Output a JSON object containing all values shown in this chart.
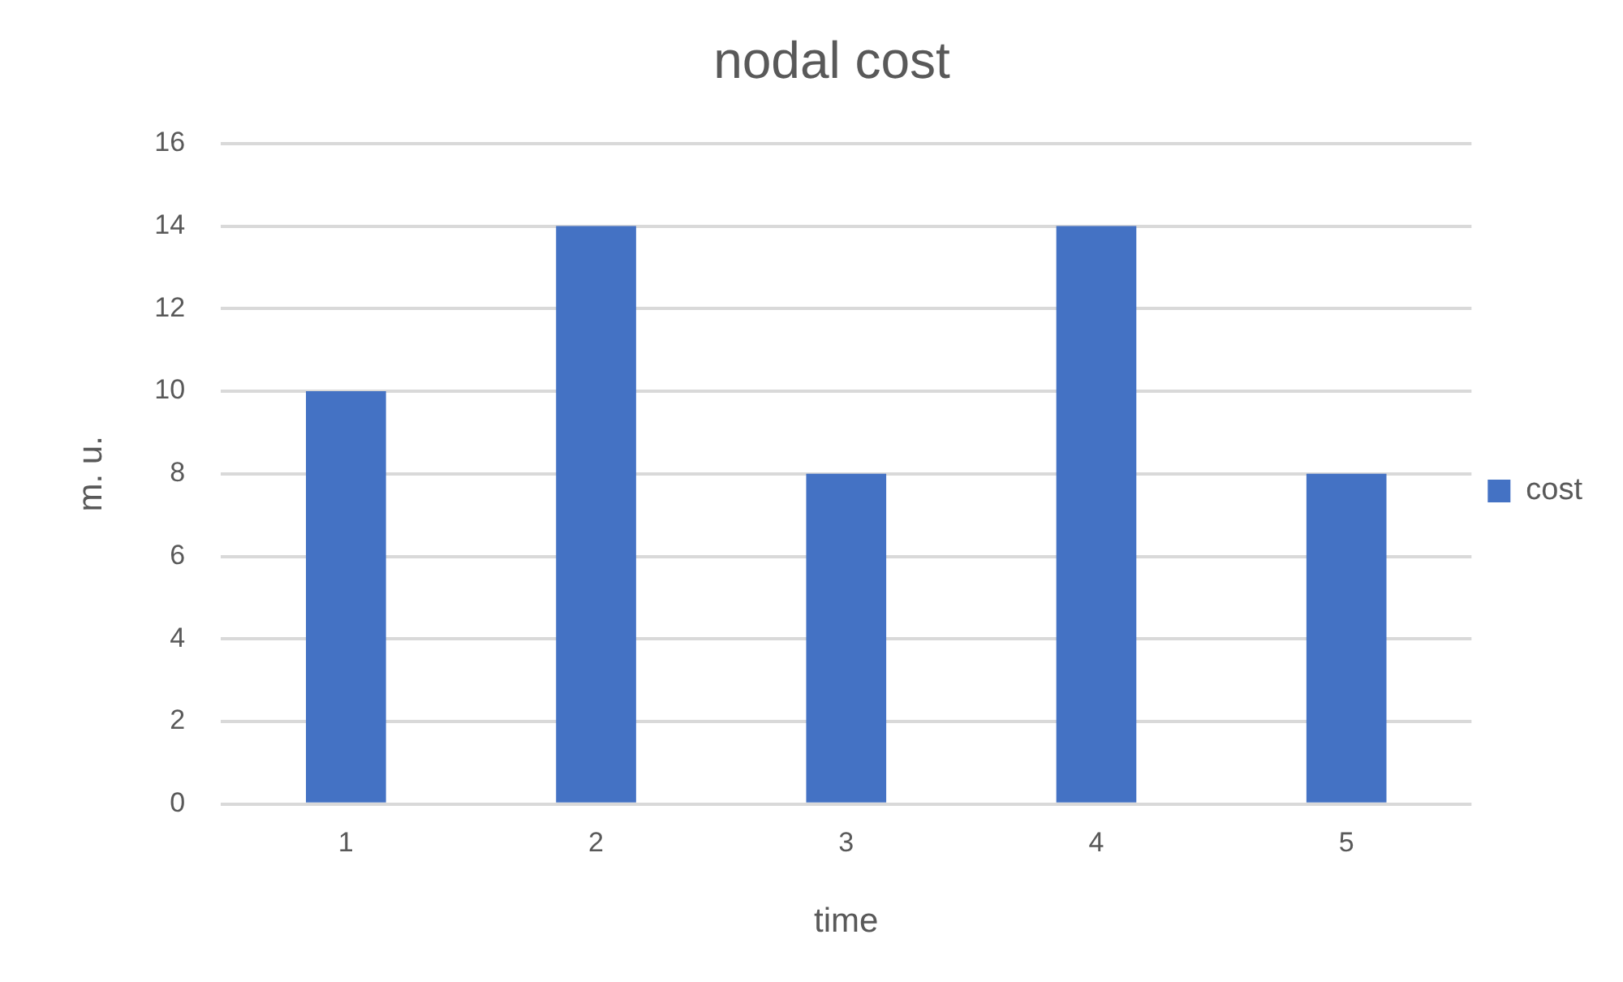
{
  "chart_data": {
    "type": "bar",
    "title": "nodal cost",
    "xlabel": "time",
    "ylabel": "m. u.",
    "categories": [
      "1",
      "2",
      "3",
      "4",
      "5"
    ],
    "series": [
      {
        "name": "cost",
        "color": "#4472c4",
        "values": [
          10,
          14,
          8,
          14,
          8
        ]
      }
    ],
    "ylim": [
      0,
      16
    ],
    "yticks": [
      0,
      2,
      4,
      6,
      8,
      10,
      12,
      14,
      16
    ],
    "grid": "y",
    "legend": "right"
  }
}
